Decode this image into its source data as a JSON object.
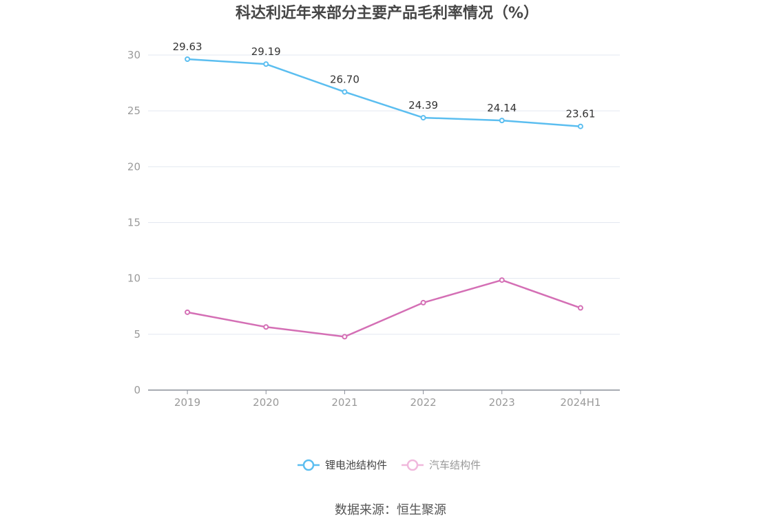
{
  "chart_data": {
    "type": "line",
    "title": "科达利近年来部分主要产品毛利率情况（%）",
    "categories": [
      "2019",
      "2020",
      "2021",
      "2022",
      "2023",
      "2024H1"
    ],
    "series": [
      {
        "name": "锂电池结构件",
        "color": "#5bbef0",
        "values": [
          29.63,
          29.19,
          26.7,
          24.39,
          24.14,
          23.61
        ],
        "labels": [
          "29.63",
          "29.19",
          "26.70",
          "24.39",
          "24.14",
          "23.61"
        ]
      },
      {
        "name": "汽车结构件",
        "color": "#d46fb5",
        "values": [
          6.97,
          5.65,
          4.78,
          7.83,
          9.85,
          7.36
        ]
      }
    ],
    "ylim": [
      0,
      30
    ],
    "yticks": [
      "0",
      "5",
      "10",
      "15",
      "20",
      "25",
      "30"
    ],
    "grid": true,
    "legend_position": "bottom"
  },
  "legend": {
    "items": [
      {
        "label": "锂电池结构件",
        "color": "#5bbef0",
        "text_color": "#444444"
      },
      {
        "label": "汽车结构件",
        "color": "#f0b8dc",
        "text_color": "#999999"
      }
    ]
  },
  "source": "数据来源：恒生聚源"
}
